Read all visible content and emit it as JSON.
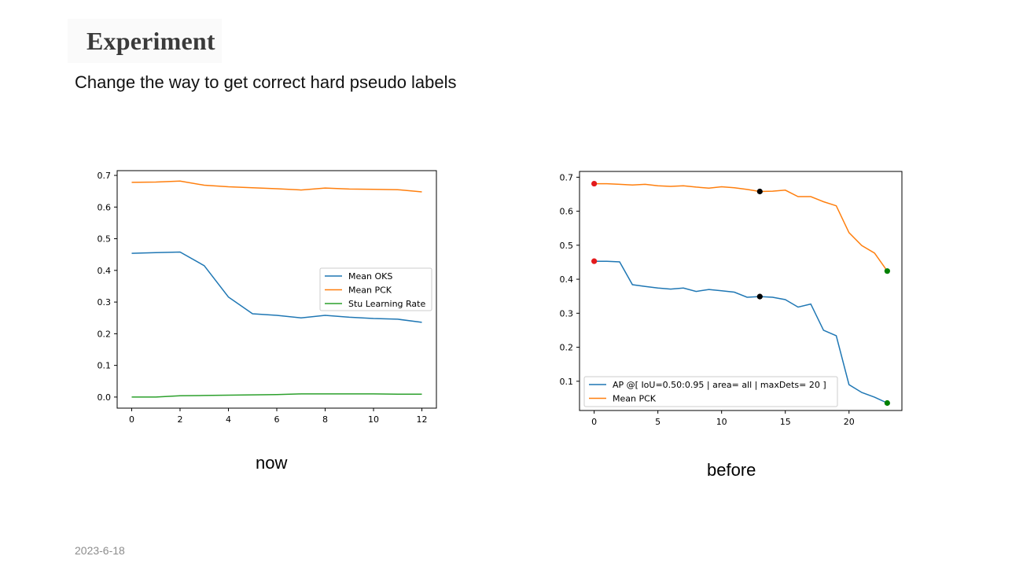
{
  "slide": {
    "title": "Experiment",
    "subtitle": "Change the way to get correct hard pseudo labels",
    "date": "2023-6-18",
    "captions": {
      "left": "now",
      "right": "before"
    }
  },
  "chart_data": [
    {
      "type": "line",
      "title": "",
      "xlabel": "",
      "ylabel": "",
      "xlim": [
        -0.6,
        12.6
      ],
      "ylim": [
        -0.035,
        0.715
      ],
      "xticks": [
        0,
        2,
        4,
        6,
        8,
        10,
        12
      ],
      "yticks": [
        0.0,
        0.1,
        0.2,
        0.3,
        0.4,
        0.5,
        0.6,
        0.7
      ],
      "x": [
        0,
        1,
        2,
        3,
        4,
        5,
        6,
        7,
        8,
        9,
        10,
        11,
        12
      ],
      "series": [
        {
          "name": "Mean OKS",
          "color": "#1f77b4",
          "values": [
            0.454,
            0.456,
            0.458,
            0.415,
            0.316,
            0.263,
            0.258,
            0.25,
            0.258,
            0.252,
            0.248,
            0.246,
            0.236
          ]
        },
        {
          "name": "Mean PCK",
          "color": "#ff7f0e",
          "values": [
            0.678,
            0.679,
            0.682,
            0.669,
            0.664,
            0.661,
            0.658,
            0.654,
            0.66,
            0.657,
            0.656,
            0.655,
            0.648
          ]
        },
        {
          "name": "Stu Learning Rate",
          "color": "#2ca02c",
          "values": [
            0.0,
            0.0,
            0.004,
            0.005,
            0.006,
            0.007,
            0.008,
            0.01,
            0.01,
            0.01,
            0.01,
            0.009,
            0.009
          ]
        }
      ],
      "legend": "center-right"
    },
    {
      "type": "line",
      "title": "",
      "xlabel": "",
      "ylabel": "",
      "xlim": [
        -1.15,
        24.15
      ],
      "ylim": [
        0.014,
        0.717
      ],
      "xticks": [
        0,
        5,
        10,
        15,
        20
      ],
      "yticks": [
        0.1,
        0.2,
        0.3,
        0.4,
        0.5,
        0.6,
        0.7
      ],
      "x": [
        0,
        1,
        2,
        3,
        4,
        5,
        6,
        7,
        8,
        9,
        10,
        11,
        12,
        13,
        14,
        15,
        16,
        17,
        18,
        19,
        20,
        21,
        22,
        23
      ],
      "series": [
        {
          "name": "AP @[ IoU=0.50:0.95 | area= all | maxDets= 20 ]",
          "color": "#1f77b4",
          "values": [
            0.453,
            0.453,
            0.451,
            0.384,
            0.379,
            0.374,
            0.371,
            0.374,
            0.364,
            0.37,
            0.366,
            0.362,
            0.347,
            0.349,
            0.347,
            0.34,
            0.318,
            0.327,
            0.25,
            0.234,
            0.09,
            0.067,
            0.053,
            0.036
          ]
        },
        {
          "name": "Mean PCK",
          "color": "#ff7f0e",
          "values": [
            0.681,
            0.681,
            0.679,
            0.677,
            0.679,
            0.675,
            0.673,
            0.675,
            0.671,
            0.668,
            0.672,
            0.669,
            0.664,
            0.658,
            0.659,
            0.662,
            0.643,
            0.643,
            0.628,
            0.616,
            0.537,
            0.499,
            0.477,
            0.424
          ]
        }
      ],
      "markers": [
        {
          "x": 0,
          "y": 0.681,
          "color": "#e31a1c"
        },
        {
          "x": 0,
          "y": 0.453,
          "color": "#e31a1c"
        },
        {
          "x": 13,
          "y": 0.658,
          "color": "#000000"
        },
        {
          "x": 13,
          "y": 0.349,
          "color": "#000000"
        },
        {
          "x": 23,
          "y": 0.424,
          "color": "#008000"
        },
        {
          "x": 23,
          "y": 0.036,
          "color": "#008000"
        }
      ],
      "legend": "lower-left"
    }
  ]
}
